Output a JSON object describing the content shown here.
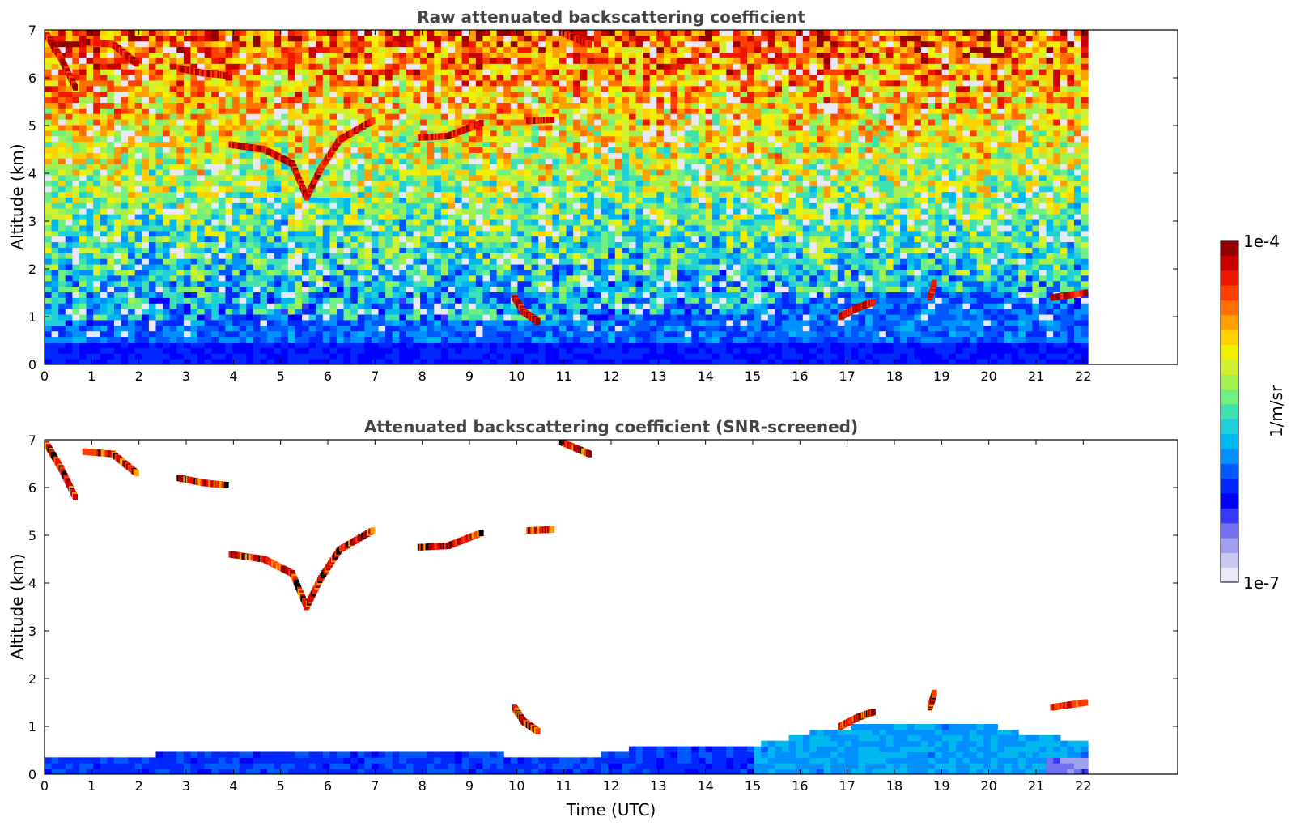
{
  "chart_data": [
    {
      "type": "heatmap",
      "title": "Raw attenuated backscattering coefficient",
      "ylabel": "Altitude (km)",
      "xlabel": "",
      "xlim": [
        0,
        24
      ],
      "ylim": [
        0,
        7
      ],
      "data_end_time": 22.1,
      "x_ticks": [
        "0",
        "1",
        "2",
        "3",
        "4",
        "5",
        "6",
        "7",
        "8",
        "9",
        "10",
        "11",
        "12",
        "13",
        "14",
        "15",
        "16",
        "17",
        "18",
        "19",
        "20",
        "21",
        "22"
      ],
      "y_ticks": [
        "0",
        "1",
        "2",
        "3",
        "4",
        "5",
        "6",
        "7"
      ],
      "features": [
        {
          "kind": "cloud_layer",
          "points": [
            [
              0,
              6.9
            ],
            [
              0.3,
              6.4
            ],
            [
              0.6,
              5.8
            ]
          ]
        },
        {
          "kind": "cloud_layer",
          "points": [
            [
              0.8,
              6.75
            ],
            [
              1.4,
              6.7
            ],
            [
              1.9,
              6.3
            ]
          ]
        },
        {
          "kind": "cloud_layer",
          "points": [
            [
              2.8,
              6.2
            ],
            [
              3.3,
              6.1
            ],
            [
              3.8,
              6.05
            ]
          ]
        },
        {
          "kind": "cloud_layer",
          "points": [
            [
              3.9,
              4.6
            ],
            [
              4.6,
              4.5
            ],
            [
              5.2,
              4.2
            ],
            [
              5.5,
              3.5
            ],
            [
              5.8,
              4.1
            ],
            [
              6.2,
              4.7
            ],
            [
              6.9,
              5.1
            ]
          ]
        },
        {
          "kind": "cloud_layer",
          "points": [
            [
              7.9,
              4.75
            ],
            [
              8.5,
              4.78
            ],
            [
              9.2,
              5.05
            ]
          ]
        },
        {
          "kind": "cloud_layer",
          "points": [
            [
              10.2,
              5.1
            ],
            [
              10.7,
              5.12
            ]
          ]
        },
        {
          "kind": "cloud_layer",
          "points": [
            [
              10.9,
              6.95
            ],
            [
              11.5,
              6.7
            ]
          ]
        },
        {
          "kind": "cloud_layer",
          "points": [
            [
              9.9,
              1.4
            ],
            [
              10.1,
              1.1
            ],
            [
              10.4,
              0.9
            ]
          ]
        },
        {
          "kind": "cloud_layer",
          "points": [
            [
              16.8,
              1.0
            ],
            [
              17.2,
              1.2
            ],
            [
              17.5,
              1.3
            ]
          ]
        },
        {
          "kind": "cloud_layer",
          "points": [
            [
              18.7,
              1.4
            ],
            [
              18.8,
              1.7
            ]
          ]
        },
        {
          "kind": "cloud_layer",
          "points": [
            [
              21.3,
              1.4
            ],
            [
              22.0,
              1.5
            ]
          ]
        }
      ]
    },
    {
      "type": "heatmap",
      "title": "Attenuated backscattering coefficient (SNR-screened)",
      "ylabel": "Altitude (km)",
      "xlabel": "Time (UTC)",
      "xlim": [
        0,
        24
      ],
      "ylim": [
        0,
        7
      ],
      "data_end_time": 22.1,
      "x_ticks": [
        "0",
        "1",
        "2",
        "3",
        "4",
        "5",
        "6",
        "7",
        "8",
        "9",
        "10",
        "11",
        "12",
        "13",
        "14",
        "15",
        "16",
        "17",
        "18",
        "19",
        "20",
        "21",
        "22"
      ],
      "y_ticks": [
        "0",
        "1",
        "2",
        "3",
        "4",
        "5",
        "6",
        "7"
      ],
      "boundary_layer_top_km": [
        [
          0,
          0.35
        ],
        [
          2,
          0.4
        ],
        [
          4,
          0.45
        ],
        [
          6,
          0.5
        ],
        [
          8,
          0.45
        ],
        [
          10,
          0.4
        ],
        [
          11.5,
          0.3
        ],
        [
          12,
          0.5
        ],
        [
          13,
          0.6
        ],
        [
          14,
          0.55
        ],
        [
          15,
          0.6
        ],
        [
          16,
          0.85
        ],
        [
          17,
          1.0
        ],
        [
          18,
          1.05
        ],
        [
          19,
          1.05
        ],
        [
          20,
          1.0
        ],
        [
          21,
          0.8
        ],
        [
          22,
          0.7
        ]
      ]
    }
  ],
  "colorbar": {
    "label": "1/m/sr",
    "max_label": "1e-4",
    "min_label": "1e-7",
    "colors": [
      "#e8e8f8",
      "#c8c8f0",
      "#a0a0ee",
      "#7070f0",
      "#3838f8",
      "#0000ff",
      "#0028ff",
      "#0058ff",
      "#0090ff",
      "#00b8f0",
      "#20d0d8",
      "#40e0b0",
      "#70f080",
      "#a0f050",
      "#d0f030",
      "#f0f000",
      "#ffd000",
      "#ffa000",
      "#ff7000",
      "#ff4000",
      "#ee1800",
      "#c80000",
      "#900000"
    ]
  }
}
